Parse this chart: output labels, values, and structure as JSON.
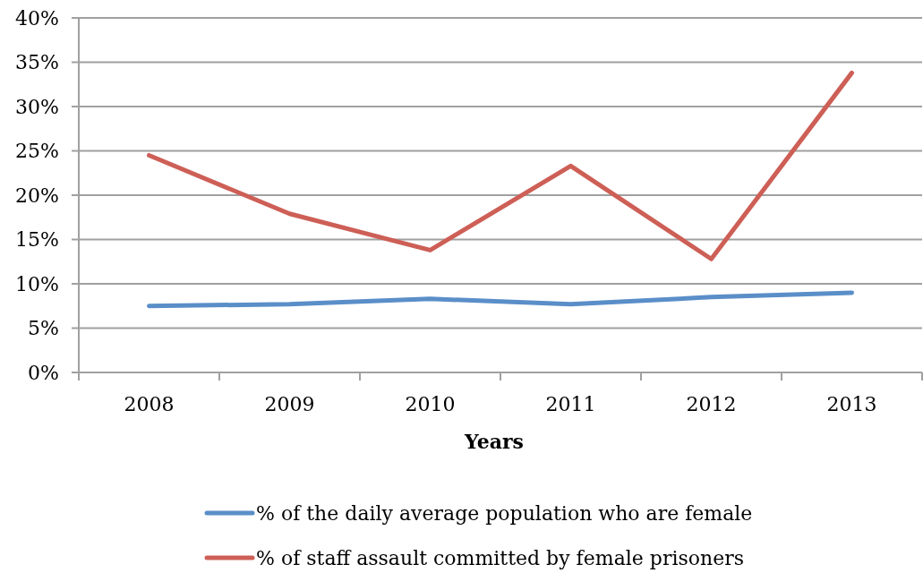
{
  "chart_data": {
    "type": "line",
    "xlabel": "Years",
    "categories": [
      "2008",
      "2009",
      "2010",
      "2011",
      "2012",
      "2013"
    ],
    "series": [
      {
        "name": "% of the daily average population who are female",
        "color": "#5a8ec8",
        "values": [
          7.5,
          7.7,
          8.3,
          7.7,
          8.5,
          9.0
        ]
      },
      {
        "name": "% of staff assault committed by female prisoners",
        "color": "#cd5f56",
        "values": [
          24.5,
          17.9,
          13.8,
          23.3,
          12.8,
          33.8
        ]
      }
    ],
    "ylim": [
      0,
      40
    ],
    "yticks": [
      {
        "value": 0,
        "label": "0%"
      },
      {
        "value": 5,
        "label": "5%"
      },
      {
        "value": 10,
        "label": "10%"
      },
      {
        "value": 15,
        "label": "15%"
      },
      {
        "value": 20,
        "label": "20%"
      },
      {
        "value": 25,
        "label": "25%"
      },
      {
        "value": 30,
        "label": "30%"
      },
      {
        "value": 35,
        "label": "35%"
      },
      {
        "value": 40,
        "label": "40%"
      }
    ],
    "grid": "y",
    "legend": "bottom",
    "marker": "none",
    "line_style": "solid"
  }
}
